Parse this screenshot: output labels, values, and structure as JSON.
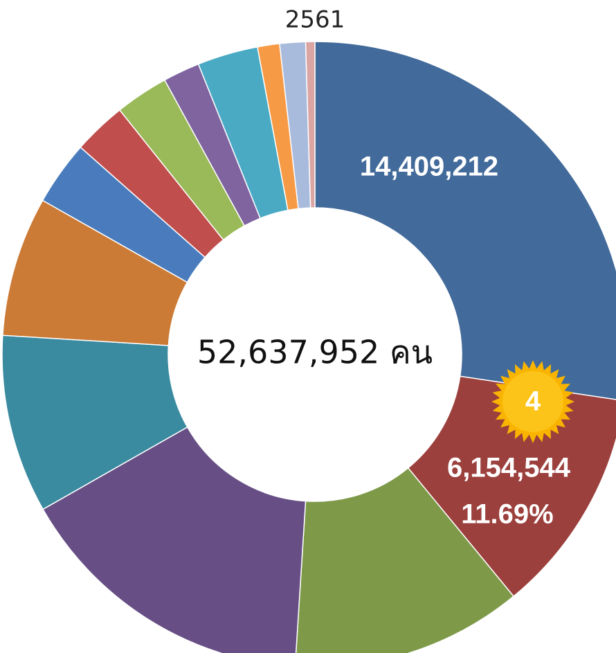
{
  "chart_data": {
    "type": "donut",
    "title": "2561",
    "center_label": "52,637,952 คน",
    "categories": [
      null,
      null,
      null,
      null,
      null,
      null,
      null,
      null,
      null,
      null,
      null,
      null,
      null,
      null
    ],
    "values": [
      14409212,
      6154544,
      6300000,
      8300000,
      4850000,
      3800000,
      1750000,
      1450000,
      1450000,
      1000000,
      1650000,
      600000,
      700000,
      250000
    ],
    "value_labels": [
      "14,409,212",
      "6,154,544",
      null,
      null,
      null,
      null,
      null,
      null,
      null,
      null,
      null,
      null,
      null,
      null
    ],
    "colors": [
      "#426a9a",
      "#9c403d",
      "#7e9a49",
      "#674f85",
      "#3a8aa0",
      "#cc7b36",
      "#4a7cbd",
      "#c04e4c",
      "#9aba5a",
      "#7f64a0",
      "#4aaac4",
      "#f79a45",
      "#a8bbdc",
      "#dba5a3"
    ],
    "annotations": [
      {
        "slice": 1,
        "percent_label": "11.69%",
        "badge": "4"
      }
    ]
  }
}
